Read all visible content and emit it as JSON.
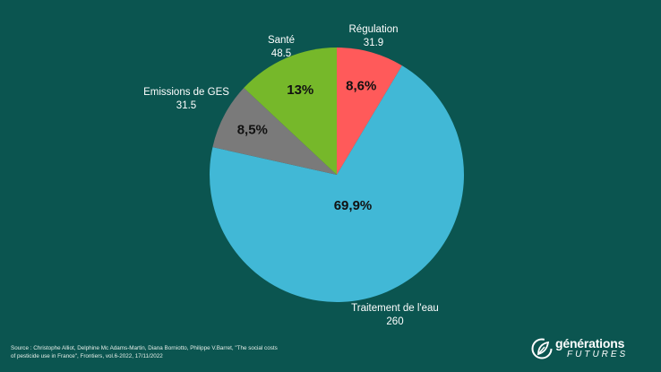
{
  "chart_data": {
    "type": "pie",
    "title": "",
    "slices": [
      {
        "label": "Régulation",
        "value": 31.9,
        "percent_label": "8,6%",
        "color": "#ff5a5a"
      },
      {
        "label": "Traitement de l'eau",
        "value": 260,
        "percent_label": "69,9%",
        "color": "#41b8d6"
      },
      {
        "label": "Emissions de GES",
        "value": 31.5,
        "percent_label": "8,5%",
        "color": "#7a7a7a"
      },
      {
        "label": "Santé",
        "value": 48.5,
        "percent_label": "13%",
        "color": "#76b82a"
      }
    ]
  },
  "footer": {
    "source": "Source : Christophe Alliot, Delphine Mc Adams-Martin, Diana Borniotto, Philippe V.Barret, \"The social costs of pesticide use in France\", Frontiers, vol.6-2022, 17/11/2022"
  },
  "logo": {
    "name": "générations",
    "sub": "FUTURES",
    "icon": "leaf-icon"
  }
}
